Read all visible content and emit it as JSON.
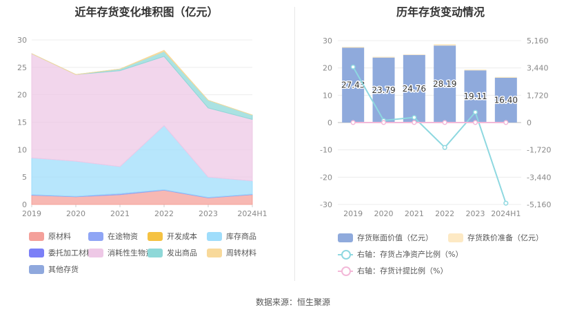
{
  "source": "数据来源：恒生聚源",
  "chart_data": [
    {
      "type": "area",
      "stacked": true,
      "title": "近年存货变化堆积图（亿元）",
      "categories": [
        "2019",
        "2020",
        "2021",
        "2022",
        "2023",
        "2024H1"
      ],
      "ylim": [
        0,
        30
      ],
      "yticks": [
        0,
        5,
        10,
        15,
        20,
        25,
        30
      ],
      "grid": true,
      "legend_position": "bottom",
      "series": [
        {
          "name": "原材料",
          "color": "#f4a09a",
          "values": [
            1.7,
            1.4,
            1.8,
            2.6,
            1.2,
            1.8
          ]
        },
        {
          "name": "在途物资",
          "color": "#8fa5f5",
          "values": [
            0.1,
            0.1,
            0.2,
            0.1,
            0.1,
            0.1
          ]
        },
        {
          "name": "开发成本",
          "color": "#f5c242",
          "values": [
            0,
            0,
            0,
            0,
            0,
            0
          ]
        },
        {
          "name": "库存商品",
          "color": "#9fddfb",
          "values": [
            6.7,
            6.4,
            4.9,
            11.7,
            3.7,
            2.4
          ]
        },
        {
          "name": "委托加工材料",
          "color": "#7b7ff7",
          "values": [
            0,
            0,
            0,
            0,
            0,
            0
          ]
        },
        {
          "name": "消耗性生物资产",
          "color": "#eec8e6",
          "values": [
            19,
            15.8,
            17.5,
            12.6,
            12.6,
            11.2
          ]
        },
        {
          "name": "发出商品",
          "color": "#8ed8d8",
          "values": [
            0,
            0,
            0.3,
            0.9,
            1.4,
            0.8
          ]
        },
        {
          "name": "周转材料",
          "color": "#f8d99a",
          "values": [
            0,
            0,
            0,
            0.2,
            0,
            0
          ]
        },
        {
          "name": "其他存货",
          "color": "#8fa8dd",
          "values": [
            0,
            0,
            0,
            0,
            0,
            0
          ]
        }
      ]
    },
    {
      "type": "bar",
      "title": "历年存货变动情况",
      "categories": [
        "2019",
        "2020",
        "2021",
        "2022",
        "2023",
        "2024H1"
      ],
      "ylim": [
        -30,
        30
      ],
      "yticks": [
        -30,
        -20,
        -10,
        0,
        10,
        20,
        30
      ],
      "y2lim": [
        -5160,
        5160
      ],
      "y2ticks": [
        "-5,160",
        "-3,440",
        "-1,720",
        "0",
        "1,720",
        "3,440",
        "5,160"
      ],
      "grid": true,
      "legend_position": "bottom",
      "series": [
        {
          "name": "存货账面价值（亿元）",
          "type": "bar",
          "color": "#8faadc",
          "values": [
            27.43,
            23.79,
            24.76,
            28.19,
            19.11,
            16.4
          ],
          "labels": [
            "27.43",
            "23.79",
            "24.76",
            "28.19",
            "19.11",
            "16.40"
          ]
        },
        {
          "name": "存货跌价准备（亿元）",
          "type": "bar",
          "color": "#fde9c4",
          "values": [
            0.3,
            0.3,
            0.2,
            0.5,
            0.3,
            0.3
          ]
        },
        {
          "name": "右轴：存货占净资产比例（%）",
          "type": "line",
          "axis": "right",
          "color": "#8ed8e0",
          "values": [
            3500,
            130,
            320,
            -1570,
            650,
            -5080
          ]
        },
        {
          "name": "右轴：存货计提比例（%）",
          "type": "line",
          "axis": "right",
          "color": "#f3b8d8",
          "values": [
            1.1,
            1.3,
            0.8,
            1.8,
            1.6,
            1.8
          ]
        }
      ]
    }
  ]
}
